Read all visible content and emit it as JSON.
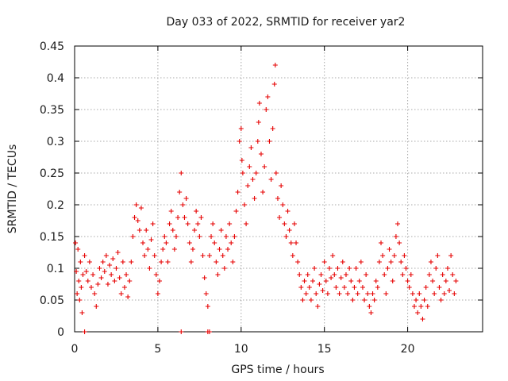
{
  "chart_data": {
    "type": "scatter",
    "title": "Day 033 of 2022, SRMTID for receiver yar2",
    "xlabel": "GPS time / hours",
    "ylabel": "SRMTID / TECUs",
    "xlim": [
      0,
      24.5
    ],
    "ylim": [
      0,
      0.45
    ],
    "x_ticks": [
      0,
      5,
      10,
      15,
      20
    ],
    "x_tick_labels": [
      "0",
      "5",
      "10",
      "15",
      "20"
    ],
    "y_ticks": [
      0,
      0.05,
      0.1,
      0.15,
      0.2,
      0.25,
      0.3,
      0.35,
      0.4,
      0.45
    ],
    "y_tick_labels": [
      "0",
      "0.05",
      "0.1",
      "0.15",
      "0.2",
      "0.25",
      "0.3",
      "0.35",
      "0.4",
      "0.45"
    ],
    "grid": true,
    "marker": "+",
    "color": "#e60000",
    "series": [
      {
        "name": "SRMTID",
        "points": [
          [
            0.05,
            0.14
          ],
          [
            0.1,
            0.095
          ],
          [
            0.15,
            0.06
          ],
          [
            0.2,
            0.13
          ],
          [
            0.25,
            0.08
          ],
          [
            0.3,
            0.05
          ],
          [
            0.35,
            0.11
          ],
          [
            0.4,
            0.07
          ],
          [
            0.45,
            0.03
          ],
          [
            0.5,
            0.09
          ],
          [
            0.6,
            0.12
          ],
          [
            0.7,
            0.095
          ],
          [
            0.8,
            0.08
          ],
          [
            0.9,
            0.11
          ],
          [
            1.0,
            0.07
          ],
          [
            1.1,
            0.09
          ],
          [
            1.2,
            0.06
          ],
          [
            1.3,
            0.04
          ],
          [
            1.4,
            0.075
          ],
          [
            1.5,
            0.1
          ],
          [
            1.6,
            0.085
          ],
          [
            1.7,
            0.11
          ],
          [
            1.8,
            0.095
          ],
          [
            1.9,
            0.12
          ],
          [
            2.0,
            0.075
          ],
          [
            2.1,
            0.105
          ],
          [
            2.2,
            0.09
          ],
          [
            2.3,
            0.115
          ],
          [
            2.4,
            0.08
          ],
          [
            2.5,
            0.1
          ],
          [
            2.6,
            0.125
          ],
          [
            2.7,
            0.085
          ],
          [
            2.8,
            0.06
          ],
          [
            2.9,
            0.11
          ],
          [
            3.0,
            0.07
          ],
          [
            3.1,
            0.09
          ],
          [
            3.2,
            0.055
          ],
          [
            3.3,
            0.08
          ],
          [
            3.4,
            0.11
          ],
          [
            3.5,
            0.15
          ],
          [
            3.6,
            0.18
          ],
          [
            3.7,
            0.2
          ],
          [
            3.8,
            0.175
          ],
          [
            3.9,
            0.16
          ],
          [
            4.0,
            0.195
          ],
          [
            4.1,
            0.14
          ],
          [
            4.2,
            0.12
          ],
          [
            4.3,
            0.16
          ],
          [
            4.4,
            0.13
          ],
          [
            4.5,
            0.1
          ],
          [
            4.6,
            0.145
          ],
          [
            4.7,
            0.17
          ],
          [
            4.8,
            0.12
          ],
          [
            4.9,
            0.09
          ],
          [
            5.0,
            0.06
          ],
          [
            5.1,
            0.08
          ],
          [
            5.2,
            0.11
          ],
          [
            5.3,
            0.13
          ],
          [
            5.4,
            0.15
          ],
          [
            5.5,
            0.14
          ],
          [
            5.6,
            0.11
          ],
          [
            5.7,
            0.17
          ],
          [
            5.8,
            0.19
          ],
          [
            5.9,
            0.16
          ],
          [
            6.0,
            0.13
          ],
          [
            6.1,
            0.15
          ],
          [
            6.2,
            0.18
          ],
          [
            6.3,
            0.22
          ],
          [
            6.4,
            0.25
          ],
          [
            6.5,
            0.2
          ],
          [
            6.6,
            0.18
          ],
          [
            6.7,
            0.21
          ],
          [
            6.8,
            0.17
          ],
          [
            6.9,
            0.14
          ],
          [
            7.0,
            0.11
          ],
          [
            7.1,
            0.13
          ],
          [
            7.2,
            0.16
          ],
          [
            7.3,
            0.19
          ],
          [
            7.4,
            0.17
          ],
          [
            7.5,
            0.15
          ],
          [
            7.6,
            0.18
          ],
          [
            7.7,
            0.12
          ],
          [
            7.8,
            0.085
          ],
          [
            7.9,
            0.06
          ],
          [
            8.0,
            0.04
          ],
          [
            8.1,
            0.12
          ],
          [
            8.2,
            0.15
          ],
          [
            8.3,
            0.17
          ],
          [
            8.4,
            0.14
          ],
          [
            8.5,
            0.11
          ],
          [
            8.6,
            0.09
          ],
          [
            8.7,
            0.13
          ],
          [
            8.8,
            0.16
          ],
          [
            8.9,
            0.12
          ],
          [
            9.0,
            0.1
          ],
          [
            9.1,
            0.15
          ],
          [
            9.2,
            0.13
          ],
          [
            9.3,
            0.17
          ],
          [
            9.4,
            0.14
          ],
          [
            9.5,
            0.11
          ],
          [
            9.6,
            0.15
          ],
          [
            9.7,
            0.19
          ],
          [
            9.8,
            0.22
          ],
          [
            9.9,
            0.3
          ],
          [
            10.0,
            0.32
          ],
          [
            10.05,
            0.27
          ],
          [
            10.1,
            0.25
          ],
          [
            10.2,
            0.2
          ],
          [
            10.3,
            0.17
          ],
          [
            10.4,
            0.23
          ],
          [
            10.5,
            0.26
          ],
          [
            10.6,
            0.29
          ],
          [
            10.7,
            0.24
          ],
          [
            10.8,
            0.21
          ],
          [
            10.9,
            0.25
          ],
          [
            11.0,
            0.3
          ],
          [
            11.05,
            0.33
          ],
          [
            11.1,
            0.36
          ],
          [
            11.2,
            0.28
          ],
          [
            11.3,
            0.22
          ],
          [
            11.4,
            0.26
          ],
          [
            11.5,
            0.35
          ],
          [
            11.6,
            0.37
          ],
          [
            11.7,
            0.3
          ],
          [
            11.8,
            0.24
          ],
          [
            11.9,
            0.32
          ],
          [
            12.0,
            0.39
          ],
          [
            12.05,
            0.42
          ],
          [
            12.1,
            0.25
          ],
          [
            12.2,
            0.21
          ],
          [
            12.3,
            0.18
          ],
          [
            12.4,
            0.23
          ],
          [
            12.5,
            0.2
          ],
          [
            12.6,
            0.17
          ],
          [
            12.7,
            0.15
          ],
          [
            12.8,
            0.19
          ],
          [
            12.9,
            0.16
          ],
          [
            13.0,
            0.14
          ],
          [
            13.1,
            0.12
          ],
          [
            13.2,
            0.17
          ],
          [
            13.3,
            0.14
          ],
          [
            13.4,
            0.11
          ],
          [
            13.5,
            0.09
          ],
          [
            13.6,
            0.07
          ],
          [
            13.7,
            0.05
          ],
          [
            13.8,
            0.08
          ],
          [
            13.9,
            0.06
          ],
          [
            14.0,
            0.09
          ],
          [
            14.1,
            0.07
          ],
          [
            14.2,
            0.05
          ],
          [
            14.3,
            0.08
          ],
          [
            14.4,
            0.1
          ],
          [
            14.5,
            0.06
          ],
          [
            14.6,
            0.04
          ],
          [
            14.7,
            0.075
          ],
          [
            14.8,
            0.09
          ],
          [
            14.9,
            0.065
          ],
          [
            15.0,
            0.11
          ],
          [
            15.1,
            0.08
          ],
          [
            15.2,
            0.06
          ],
          [
            15.3,
            0.1
          ],
          [
            15.4,
            0.085
          ],
          [
            15.5,
            0.12
          ],
          [
            15.6,
            0.09
          ],
          [
            15.7,
            0.07
          ],
          [
            15.8,
            0.1
          ],
          [
            15.9,
            0.06
          ],
          [
            16.0,
            0.085
          ],
          [
            16.1,
            0.11
          ],
          [
            16.2,
            0.07
          ],
          [
            16.3,
            0.09
          ],
          [
            16.4,
            0.06
          ],
          [
            16.5,
            0.1
          ],
          [
            16.6,
            0.08
          ],
          [
            16.7,
            0.05
          ],
          [
            16.8,
            0.07
          ],
          [
            16.9,
            0.1
          ],
          [
            17.0,
            0.06
          ],
          [
            17.1,
            0.08
          ],
          [
            17.2,
            0.11
          ],
          [
            17.3,
            0.07
          ],
          [
            17.4,
            0.05
          ],
          [
            17.5,
            0.09
          ],
          [
            17.6,
            0.06
          ],
          [
            17.7,
            0.04
          ],
          [
            17.8,
            0.03
          ],
          [
            17.9,
            0.06
          ],
          [
            18.0,
            0.05
          ],
          [
            18.1,
            0.08
          ],
          [
            18.2,
            0.07
          ],
          [
            18.3,
            0.11
          ],
          [
            18.4,
            0.14
          ],
          [
            18.5,
            0.12
          ],
          [
            18.6,
            0.09
          ],
          [
            18.7,
            0.06
          ],
          [
            18.8,
            0.1
          ],
          [
            18.9,
            0.13
          ],
          [
            19.0,
            0.11
          ],
          [
            19.1,
            0.08
          ],
          [
            19.2,
            0.12
          ],
          [
            19.3,
            0.15
          ],
          [
            19.4,
            0.17
          ],
          [
            19.5,
            0.14
          ],
          [
            19.6,
            0.11
          ],
          [
            19.7,
            0.09
          ],
          [
            19.8,
            0.12
          ],
          [
            19.9,
            0.1
          ],
          [
            20.0,
            0.08
          ],
          [
            20.1,
            0.07
          ],
          [
            20.2,
            0.09
          ],
          [
            20.3,
            0.06
          ],
          [
            20.4,
            0.04
          ],
          [
            20.5,
            0.05
          ],
          [
            20.6,
            0.03
          ],
          [
            20.7,
            0.06
          ],
          [
            20.8,
            0.04
          ],
          [
            20.9,
            0.02
          ],
          [
            21.0,
            0.05
          ],
          [
            21.1,
            0.07
          ],
          [
            21.2,
            0.04
          ],
          [
            21.3,
            0.09
          ],
          [
            21.4,
            0.11
          ],
          [
            21.5,
            0.08
          ],
          [
            21.6,
            0.06
          ],
          [
            21.7,
            0.1
          ],
          [
            21.8,
            0.12
          ],
          [
            21.9,
            0.07
          ],
          [
            22.0,
            0.05
          ],
          [
            22.1,
            0.09
          ],
          [
            22.2,
            0.06
          ],
          [
            22.3,
            0.08
          ],
          [
            22.4,
            0.1
          ],
          [
            22.5,
            0.065
          ],
          [
            22.6,
            0.12
          ],
          [
            22.7,
            0.09
          ],
          [
            22.8,
            0.06
          ],
          [
            22.9,
            0.08
          ],
          [
            0.6,
            0.0
          ],
          [
            6.4,
            0.0
          ],
          [
            8.0,
            0.0
          ],
          [
            8.1,
            0.0
          ]
        ]
      }
    ]
  }
}
